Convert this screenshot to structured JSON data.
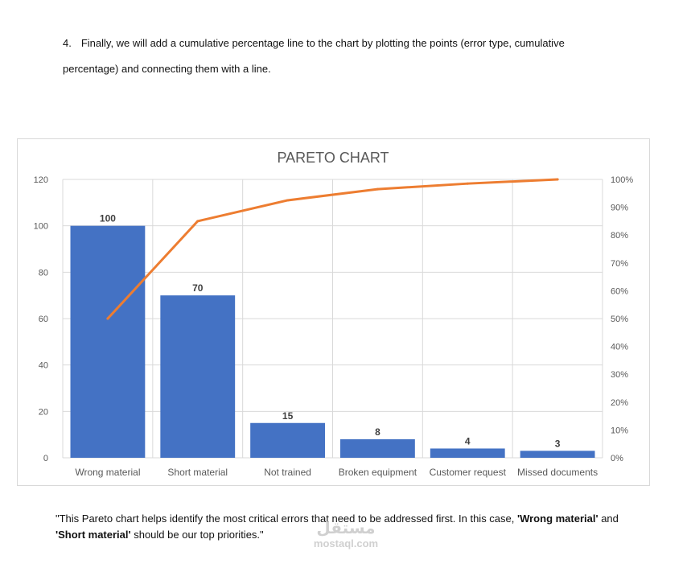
{
  "step": {
    "number": "4.",
    "line1": "Finally, we will add a cumulative percentage line to the chart by plotting the points (error type, cumulative",
    "line2": "percentage) and connecting them with a line."
  },
  "chart_data": {
    "type": "bar",
    "title": "PARETO CHART",
    "categories": [
      "Wrong material",
      "Short material",
      "Not trained",
      "Broken equipment",
      "Customer request",
      "Missed documents"
    ],
    "series": [
      {
        "type": "bar",
        "values": [
          100,
          70,
          15,
          8,
          4,
          3
        ],
        "color": "#4472c4"
      },
      {
        "type": "line",
        "axis": "right",
        "values": [
          50,
          85,
          92.5,
          96.5,
          98.5,
          100
        ],
        "color": "#ed7d31"
      }
    ],
    "ylim": [
      0,
      120
    ],
    "yticks": [
      0,
      20,
      40,
      60,
      80,
      100,
      120
    ],
    "y2lim": [
      0,
      100
    ],
    "y2ticks": [
      "0%",
      "10%",
      "20%",
      "30%",
      "40%",
      "50%",
      "60%",
      "70%",
      "80%",
      "90%",
      "100%"
    ],
    "grid": true
  },
  "caption": {
    "part1": "\"This Pareto chart helps identify the most critical errors that need to be addressed first. In this case, ",
    "bold1": "'Wrong material'",
    "part2": " and ",
    "bold2": "'Short material'",
    "part3": " should be our top priorities.\""
  },
  "watermark": {
    "logo": "مستقل",
    "text": "mostaql.com"
  }
}
